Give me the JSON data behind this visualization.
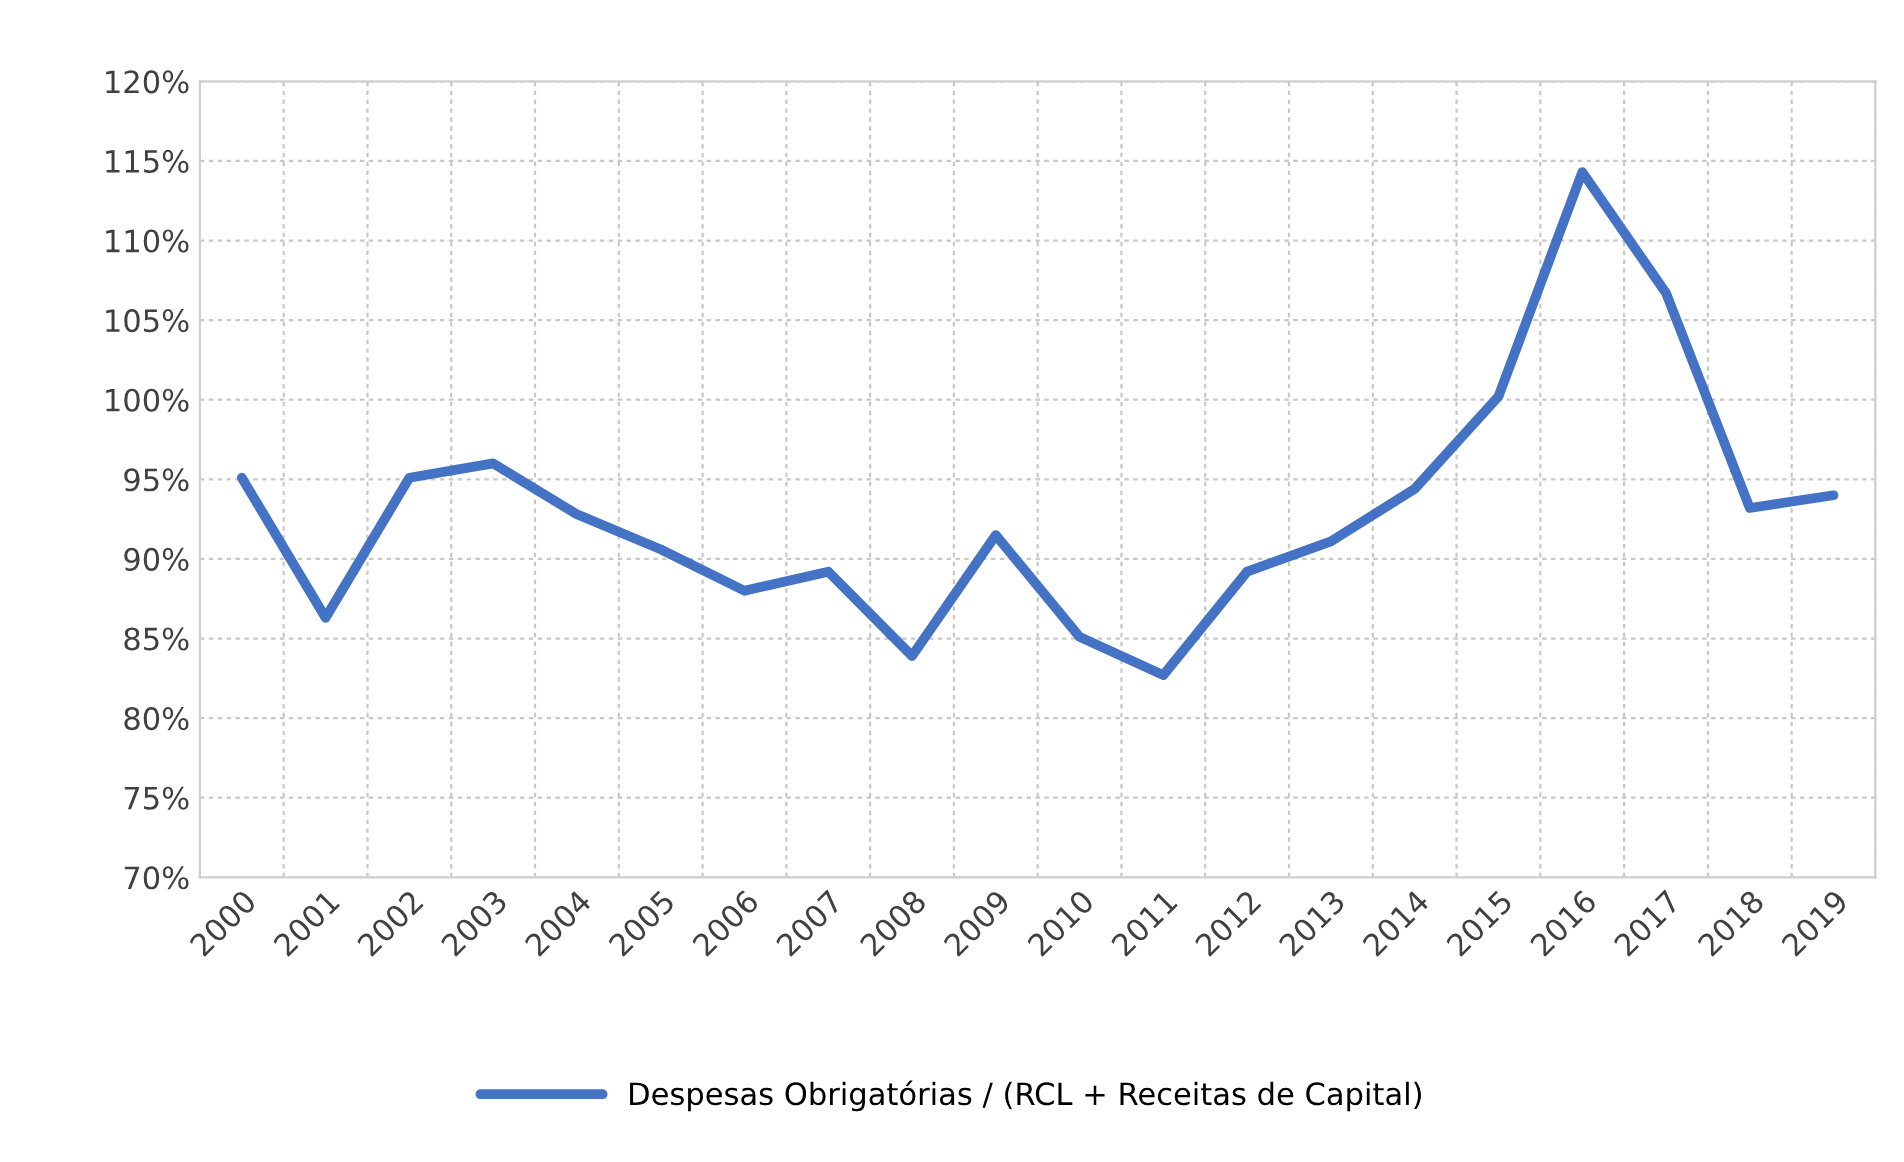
{
  "chart_data": {
    "type": "line",
    "categories": [
      "2000",
      "2001",
      "2002",
      "2003",
      "2004",
      "2005",
      "2006",
      "2007",
      "2008",
      "2009",
      "2010",
      "2011",
      "2012",
      "2013",
      "2014",
      "2015",
      "2016",
      "2017",
      "2018",
      "2019"
    ],
    "series": [
      {
        "name": "Despesas Obrigatórias / (RCL + Receitas de Capital)",
        "color": "#4472c4",
        "values": [
          95.1,
          86.3,
          95.1,
          96.0,
          92.8,
          90.6,
          88.0,
          89.2,
          83.9,
          91.5,
          85.1,
          82.7,
          89.2,
          91.1,
          94.4,
          100.2,
          114.3,
          106.7,
          93.2,
          94.0
        ]
      }
    ],
    "ylim": [
      70,
      120
    ],
    "yticks": [
      {
        "value": 70,
        "label": "70%"
      },
      {
        "value": 75,
        "label": "75%"
      },
      {
        "value": 80,
        "label": "80%"
      },
      {
        "value": 85,
        "label": "85%"
      },
      {
        "value": 90,
        "label": "90%"
      },
      {
        "value": 95,
        "label": "95%"
      },
      {
        "value": 100,
        "label": "100%"
      },
      {
        "value": 105,
        "label": "105%"
      },
      {
        "value": 110,
        "label": "110%"
      },
      {
        "value": 115,
        "label": "115%"
      },
      {
        "value": 120,
        "label": "120%"
      }
    ],
    "grid": true,
    "legend": "bottom",
    "line_style": "solid",
    "marker": "none"
  }
}
